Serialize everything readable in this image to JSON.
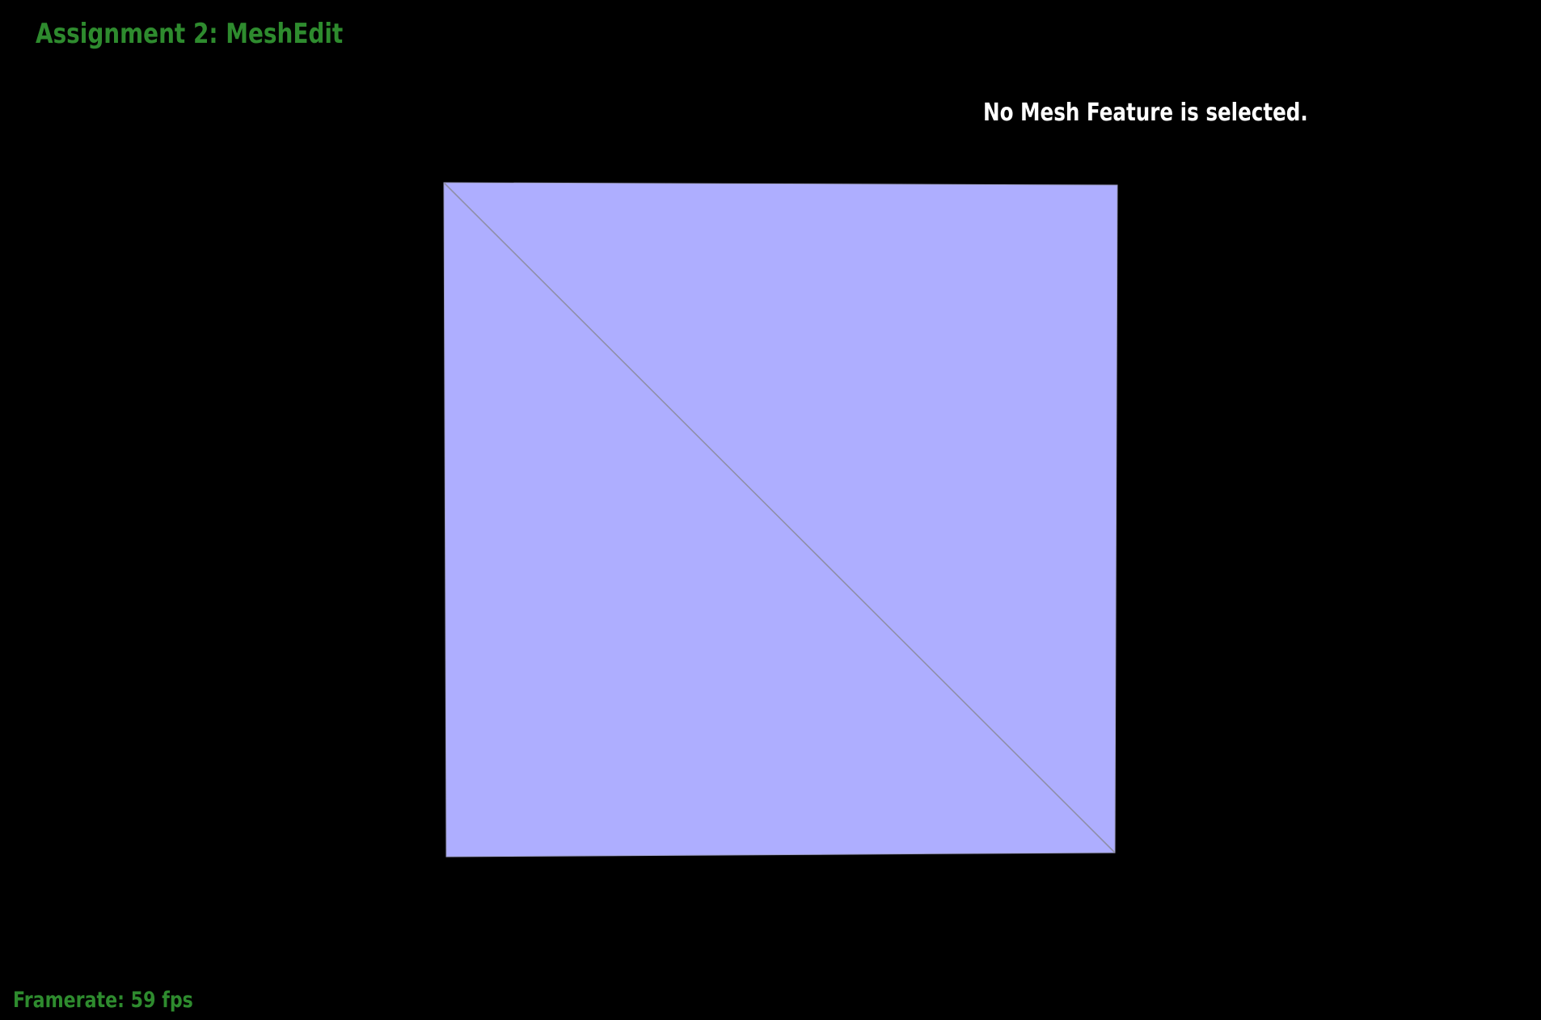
{
  "header": {
    "title": "Assignment 2: MeshEdit"
  },
  "status": {
    "selection_message": "No Mesh Feature is selected."
  },
  "footer": {
    "framerate_label": "Framerate: 59 fps"
  },
  "mesh": {
    "face_color": "#aeaeff",
    "edge_color": "#8f8fa8",
    "face_count": 2
  }
}
